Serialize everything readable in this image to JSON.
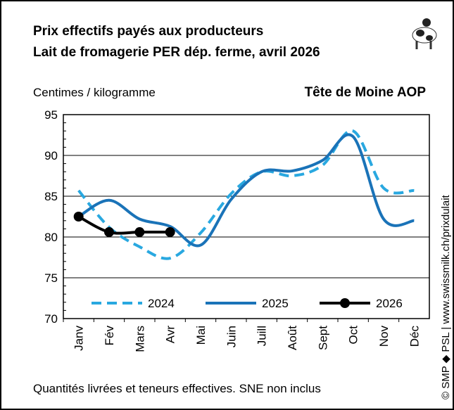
{
  "chart_data": {
    "type": "line",
    "title": "Prix effectifs payés aux producteurs",
    "subtitle": "Lait de fromagerie PER dép. ferme, avril 2026",
    "y_label": "Centimes / kilogramme",
    "product": "Tête de Moine AOP",
    "footnote": "Quantités livrées et teneurs effectives. SNE non inclus",
    "source": "© SMP ◆ PSL | www.swissmilk.ch/prixdulait",
    "categories": [
      "Janv",
      "Fév",
      "Mars",
      "Avr",
      "Mai",
      "Juin",
      "Juill",
      "Août",
      "Sept",
      "Oct",
      "Nov",
      "Déc"
    ],
    "series": [
      {
        "name": "2024",
        "color": "#29a8e0",
        "dash": true,
        "marker": false,
        "values": [
          85.7,
          81.2,
          78.8,
          77.4,
          80.5,
          85.3,
          88.0,
          87.5,
          88.8,
          93.0,
          86.0,
          85.7
        ]
      },
      {
        "name": "2025",
        "color": "#1a73b8",
        "dash": false,
        "marker": false,
        "values": [
          82.5,
          84.5,
          82.2,
          81.3,
          79.0,
          84.6,
          88.0,
          88.1,
          89.4,
          92.3,
          82.2,
          82.0
        ]
      },
      {
        "name": "2026",
        "color": "#000000",
        "dash": false,
        "marker": true,
        "values": [
          82.5,
          80.6,
          80.6,
          80.6,
          null,
          null,
          null,
          null,
          null,
          null,
          null,
          null
        ]
      }
    ],
    "ylim": [
      70,
      95
    ],
    "yticks": [
      70,
      75,
      80,
      85,
      90,
      95
    ],
    "grid": true
  }
}
